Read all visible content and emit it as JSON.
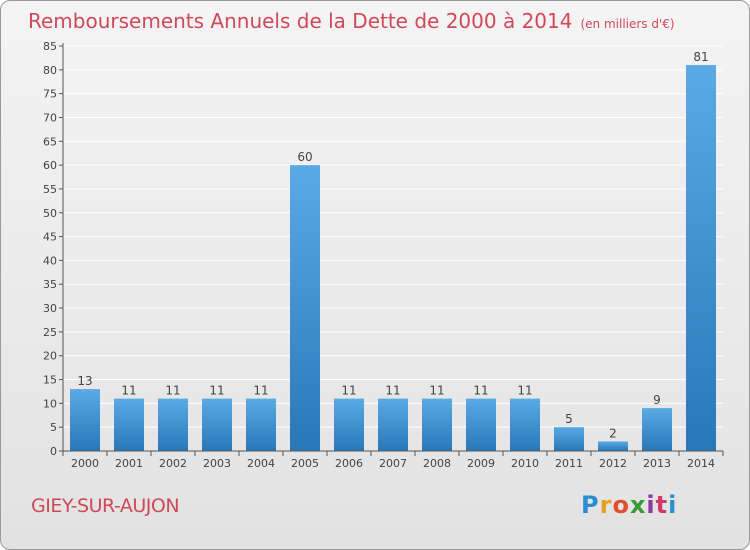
{
  "header": {
    "title": "Remboursements Annuels de la Dette de 2000 à 2014",
    "unit": "(en milliers d'€)"
  },
  "footer": {
    "commune": "GIEY-SUR-AUJON",
    "logo_letters": [
      "P",
      "r",
      "o",
      "x",
      "i",
      "t",
      "i"
    ],
    "logo_colors": [
      "#2a8ed3",
      "#e8a020",
      "#e05030",
      "#3a9a3a",
      "#8a3aa0",
      "#d03a6a",
      "#2a8ed3"
    ]
  },
  "colors": {
    "title": "#d0485a",
    "bar_light": "#5aaae6",
    "bar_dark": "#2878b8",
    "grid": "#ffffff"
  },
  "chart_data": {
    "type": "bar",
    "title": "Remboursements Annuels de la Dette de 2000 à 2014",
    "unit": "(en milliers d'€)",
    "categories": [
      "2000",
      "2001",
      "2002",
      "2003",
      "2004",
      "2005",
      "2006",
      "2007",
      "2008",
      "2009",
      "2010",
      "2011",
      "2012",
      "2013",
      "2014"
    ],
    "values": [
      13,
      11,
      11,
      11,
      11,
      60,
      11,
      11,
      11,
      11,
      11,
      5,
      2,
      9,
      81
    ],
    "ylim": [
      0,
      85
    ],
    "yticks": [
      0,
      5,
      10,
      15,
      20,
      25,
      30,
      35,
      40,
      45,
      50,
      55,
      60,
      65,
      70,
      75,
      80,
      85
    ],
    "grid": true,
    "data_labels": true
  }
}
